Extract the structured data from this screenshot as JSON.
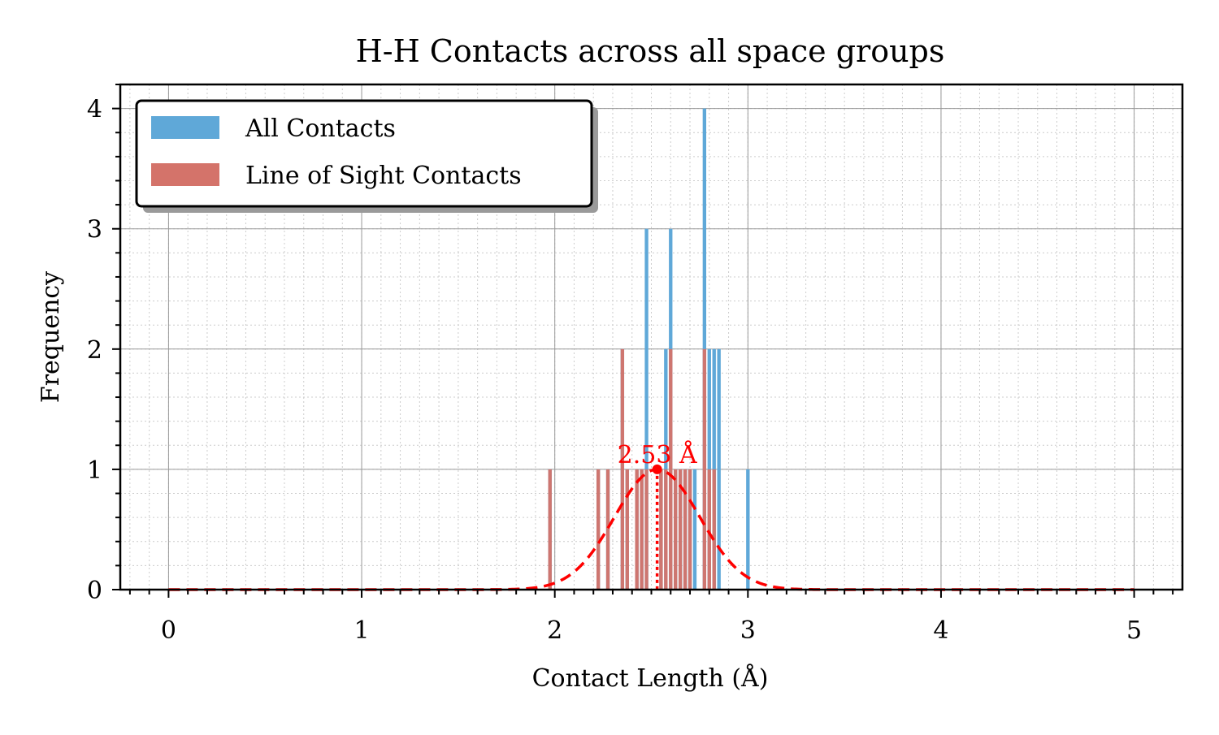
{
  "chart_data": {
    "type": "bar",
    "title": "H-H Contacts across all space groups",
    "xlabel": "Contact Length (Å)",
    "ylabel": "Frequency",
    "xlim": [
      -0.25,
      5.25
    ],
    "ylim": [
      0,
      4.2
    ],
    "x_ticks": [
      0,
      1,
      2,
      3,
      4,
      5
    ],
    "y_ticks": [
      0,
      1,
      2,
      3,
      4
    ],
    "grid": true,
    "legend_position": "top-left",
    "bin_width": 0.025,
    "series": [
      {
        "name": "All Contacts",
        "color": "#5fa8d8",
        "bins": [
          {
            "x": 1.975,
            "y": 1
          },
          {
            "x": 2.225,
            "y": 1
          },
          {
            "x": 2.275,
            "y": 1
          },
          {
            "x": 2.35,
            "y": 2
          },
          {
            "x": 2.375,
            "y": 1
          },
          {
            "x": 2.425,
            "y": 1
          },
          {
            "x": 2.45,
            "y": 1
          },
          {
            "x": 2.475,
            "y": 3
          },
          {
            "x": 2.55,
            "y": 1
          },
          {
            "x": 2.575,
            "y": 2
          },
          {
            "x": 2.6,
            "y": 3
          },
          {
            "x": 2.625,
            "y": 1
          },
          {
            "x": 2.65,
            "y": 1
          },
          {
            "x": 2.675,
            "y": 1
          },
          {
            "x": 2.7,
            "y": 1
          },
          {
            "x": 2.725,
            "y": 1
          },
          {
            "x": 2.775,
            "y": 4
          },
          {
            "x": 2.8,
            "y": 2
          },
          {
            "x": 2.825,
            "y": 2
          },
          {
            "x": 2.85,
            "y": 2
          },
          {
            "x": 3.0,
            "y": 1
          }
        ]
      },
      {
        "name": "Line of Sight Contacts",
        "color": "#d4736a",
        "bins": [
          {
            "x": 1.975,
            "y": 1
          },
          {
            "x": 2.225,
            "y": 1
          },
          {
            "x": 2.275,
            "y": 1
          },
          {
            "x": 2.35,
            "y": 2
          },
          {
            "x": 2.375,
            "y": 1
          },
          {
            "x": 2.425,
            "y": 1
          },
          {
            "x": 2.45,
            "y": 1
          },
          {
            "x": 2.475,
            "y": 1
          },
          {
            "x": 2.55,
            "y": 1
          },
          {
            "x": 2.575,
            "y": 1
          },
          {
            "x": 2.6,
            "y": 2
          },
          {
            "x": 2.625,
            "y": 1
          },
          {
            "x": 2.65,
            "y": 1
          },
          {
            "x": 2.675,
            "y": 1
          },
          {
            "x": 2.7,
            "y": 1
          },
          {
            "x": 2.775,
            "y": 2
          },
          {
            "x": 2.8,
            "y": 1
          },
          {
            "x": 2.825,
            "y": 1
          }
        ]
      }
    ],
    "fit_curve": {
      "color": "#ff0000",
      "style": "dashed",
      "peak_x": 2.53,
      "peak_y": 1,
      "sigma": 0.22,
      "x_range": [
        0,
        5
      ]
    },
    "annotation": {
      "text": "2.53 Å",
      "x": 2.53,
      "y": 1,
      "color": "#ff0000"
    }
  }
}
